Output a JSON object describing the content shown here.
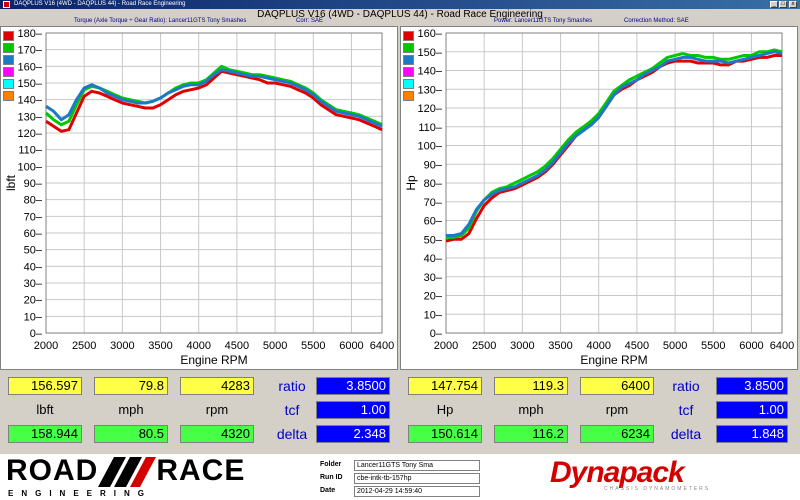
{
  "window": {
    "title": "DAQPLUS V16 (4WD - DAQPLUS 44) - Road Race Engineering",
    "minimize_glyph": "_",
    "maximize_glyph": "□",
    "close_glyph": "x"
  },
  "header": {
    "main_title": "DAQPLUS V16 (4WD - DAQPLUS 44) - Road Race Engineering",
    "left_subtitle": "Torque (Axle Torque ÷ Gear Ratio): Lancer11GTS Tony Smashes",
    "left_corr": "Corr: SAE",
    "right_subtitle": "Power: Lancer11GTS Tony Smashes",
    "right_corr": "Correction Method: SAE"
  },
  "legend_swatches": [
    "#e00000",
    "#00c800",
    "#1e78c8",
    "#ff00ff",
    "#00ffff",
    "#ff7f00"
  ],
  "colors": {
    "run1": "#e00000",
    "run2": "#00c800",
    "run3": "#1e78c8",
    "yellow_cell": "#ffff46",
    "green_cell": "#46ff46",
    "blue_cell": "#0000ff"
  },
  "chart_data": [
    {
      "type": "line",
      "title": "",
      "xlabel": "Engine RPM",
      "ylabel": "lbft",
      "xlim": [
        2000,
        6400
      ],
      "ylim": [
        0,
        180
      ],
      "x_ticks": [
        "2000",
        "2500",
        "3000",
        "3500",
        "4000",
        "4500",
        "5000",
        "5500",
        "6000",
        "6400"
      ],
      "y_ticks": [
        "0",
        "10",
        "20",
        "30",
        "40",
        "50",
        "60",
        "70",
        "80",
        "90",
        "100",
        "110",
        "120",
        "130",
        "140",
        "150",
        "160",
        "170",
        "180"
      ],
      "grid": true,
      "series": [
        {
          "color": "#e00000",
          "x": [
            2000,
            2100,
            2200,
            2300,
            2400,
            2500,
            2600,
            2700,
            2800,
            2900,
            3000,
            3100,
            3200,
            3300,
            3400,
            3500,
            3600,
            3700,
            3800,
            3900,
            4000,
            4100,
            4200,
            4300,
            4400,
            4500,
            4600,
            4700,
            4800,
            4900,
            5000,
            5100,
            5200,
            5300,
            5400,
            5500,
            5600,
            5700,
            5800,
            5900,
            6000,
            6100,
            6200,
            6300,
            6400
          ],
          "y": [
            127,
            124,
            121,
            122,
            132,
            142,
            145,
            144,
            142,
            140,
            138,
            137,
            136,
            135,
            135,
            137,
            140,
            143,
            145,
            146,
            147,
            149,
            153,
            157,
            156,
            155,
            154,
            153,
            152,
            150,
            150,
            149,
            148,
            146,
            144,
            141,
            137,
            134,
            131,
            130,
            129,
            128,
            126,
            124,
            122
          ]
        },
        {
          "color": "#00c800",
          "x": [
            2000,
            2100,
            2200,
            2300,
            2400,
            2500,
            2600,
            2700,
            2800,
            2900,
            3000,
            3100,
            3200,
            3300,
            3400,
            3500,
            3600,
            3700,
            3800,
            3900,
            4000,
            4100,
            4200,
            4300,
            4400,
            4500,
            4600,
            4700,
            4800,
            4900,
            5000,
            5100,
            5200,
            5300,
            5400,
            5500,
            5600,
            5700,
            5800,
            5900,
            6000,
            6100,
            6200,
            6300,
            6400
          ],
          "y": [
            132,
            128,
            125,
            127,
            137,
            146,
            148,
            147,
            145,
            143,
            141,
            140,
            139,
            138,
            139,
            141,
            144,
            147,
            149,
            150,
            150,
            152,
            156,
            160,
            158,
            157,
            156,
            155,
            155,
            154,
            153,
            152,
            151,
            149,
            147,
            144,
            140,
            137,
            134,
            133,
            132,
            131,
            129,
            127,
            125
          ]
        },
        {
          "color": "#1e78c8",
          "x": [
            2000,
            2100,
            2200,
            2300,
            2400,
            2500,
            2600,
            2700,
            2800,
            2900,
            3000,
            3100,
            3200,
            3300,
            3400,
            3500,
            3600,
            3700,
            3800,
            3900,
            4000,
            4100,
            4200,
            4300,
            4400,
            4500,
            4600,
            4700,
            4800,
            4900,
            5000,
            5100,
            5200,
            5300,
            5400,
            5500,
            5600,
            5700,
            5800,
            5900,
            6000,
            6100,
            6200,
            6300,
            6400
          ],
          "y": [
            136,
            133,
            128,
            131,
            140,
            147,
            149,
            147,
            144,
            142,
            140,
            139,
            138,
            138,
            139,
            141,
            144,
            146,
            148,
            149,
            149,
            151,
            155,
            158,
            157,
            156,
            155,
            154,
            154,
            153,
            152,
            151,
            150,
            148,
            146,
            143,
            139,
            136,
            133,
            132,
            131,
            130,
            128,
            126,
            124
          ]
        }
      ]
    },
    {
      "type": "line",
      "title": "",
      "xlabel": "Engine RPM",
      "ylabel": "Hp",
      "xlim": [
        2000,
        6400
      ],
      "ylim": [
        0,
        160
      ],
      "x_ticks": [
        "2000",
        "2500",
        "3000",
        "3500",
        "4000",
        "4500",
        "5000",
        "5500",
        "6000",
        "6400"
      ],
      "y_ticks": [
        "0",
        "10",
        "20",
        "30",
        "40",
        "50",
        "60",
        "70",
        "80",
        "90",
        "100",
        "110",
        "120",
        "130",
        "140",
        "150",
        "160"
      ],
      "grid": true,
      "series": [
        {
          "color": "#e00000",
          "x": [
            2000,
            2100,
            2200,
            2300,
            2400,
            2500,
            2600,
            2700,
            2800,
            2900,
            3000,
            3100,
            3200,
            3300,
            3400,
            3500,
            3600,
            3700,
            3800,
            3900,
            4000,
            4100,
            4200,
            4300,
            4400,
            4500,
            4600,
            4700,
            4800,
            4900,
            5000,
            5100,
            5200,
            5300,
            5400,
            5500,
            5600,
            5700,
            5800,
            5900,
            6000,
            6100,
            6200,
            6300,
            6400
          ],
          "y": [
            49,
            50,
            50,
            53,
            61,
            68,
            72,
            75,
            76,
            77,
            79,
            81,
            83,
            86,
            90,
            95,
            100,
            105,
            109,
            111,
            115,
            121,
            127,
            130,
            132,
            135,
            137,
            139,
            142,
            144,
            145,
            145,
            145,
            144,
            144,
            144,
            143,
            143,
            145,
            145,
            146,
            147,
            147,
            148,
            148
          ]
        },
        {
          "color": "#00c800",
          "x": [
            2000,
            2100,
            2200,
            2300,
            2400,
            2500,
            2600,
            2700,
            2800,
            2900,
            3000,
            3100,
            3200,
            3300,
            3400,
            3500,
            3600,
            3700,
            3800,
            3900,
            4000,
            4100,
            4200,
            4300,
            4400,
            4500,
            4600,
            4700,
            4800,
            4900,
            5000,
            5100,
            5200,
            5300,
            5400,
            5500,
            5600,
            5700,
            5800,
            5900,
            6000,
            6100,
            6200,
            6300,
            6400
          ],
          "y": [
            51,
            51,
            52,
            56,
            65,
            71,
            75,
            77,
            78,
            80,
            82,
            84,
            86,
            89,
            93,
            98,
            103,
            107,
            110,
            113,
            117,
            123,
            129,
            132,
            135,
            137,
            139,
            141,
            144,
            147,
            148,
            149,
            148,
            148,
            147,
            147,
            146,
            146,
            147,
            148,
            148,
            150,
            150,
            151,
            150
          ]
        },
        {
          "color": "#1e78c8",
          "x": [
            2000,
            2100,
            2200,
            2300,
            2400,
            2500,
            2600,
            2700,
            2800,
            2900,
            3000,
            3100,
            3200,
            3300,
            3400,
            3500,
            3600,
            3700,
            3800,
            3900,
            4000,
            4100,
            4200,
            4300,
            4400,
            4500,
            4600,
            4700,
            4800,
            4900,
            5000,
            5100,
            5200,
            5300,
            5400,
            5500,
            5600,
            5700,
            5800,
            5900,
            6000,
            6100,
            6200,
            6300,
            6400
          ],
          "y": [
            52,
            52,
            53,
            58,
            66,
            71,
            74,
            76,
            77,
            78,
            80,
            82,
            84,
            87,
            91,
            96,
            101,
            105,
            108,
            111,
            115,
            121,
            127,
            131,
            133,
            135,
            138,
            140,
            142,
            145,
            146,
            147,
            147,
            146,
            145,
            145,
            145,
            144,
            145,
            146,
            147,
            148,
            149,
            150,
            149
          ]
        }
      ]
    }
  ],
  "readouts": {
    "left": {
      "torque_max": "156.597",
      "mph_max": "79.8",
      "rpm_max": "4283",
      "unit_torque": "lbft",
      "unit_mph": "mph",
      "unit_rpm": "rpm",
      "torque_cur": "158.944",
      "mph_cur": "80.5",
      "rpm_cur": "4320",
      "ratio_label": "ratio",
      "tcf_label": "tcf",
      "delta_label": "delta",
      "ratio_val": "3.8500",
      "tcf_val": "1.00",
      "delta_val": "2.348"
    },
    "right": {
      "hp_max": "147.754",
      "mph_max": "119.3",
      "rpm_max": "6400",
      "unit_hp": "Hp",
      "unit_mph": "mph",
      "unit_rpm": "rpm",
      "hp_cur": "150.614",
      "mph_cur": "116.2",
      "rpm_cur": "6234",
      "ratio_label": "ratio",
      "tcf_label": "tcf",
      "delta_label": "delta",
      "ratio_val": "3.8500",
      "tcf_val": "1.00",
      "delta_val": "1.848"
    }
  },
  "footer": {
    "logo_left_word": "ROAD",
    "logo_right_word": "RACE",
    "logo_sub": "ENGINEERING",
    "folder_label": "Folder",
    "folder_value": "Lancer11GTS Tony Sma",
    "runid_label": "Run ID",
    "runid_value": "cbe-intk-tb-157hp",
    "date_label": "Date",
    "date_value": "2012-04-29 14:59:40",
    "brand": "Dynapack",
    "brand_sub": "CHASSIS DYNAMOMETERS"
  }
}
